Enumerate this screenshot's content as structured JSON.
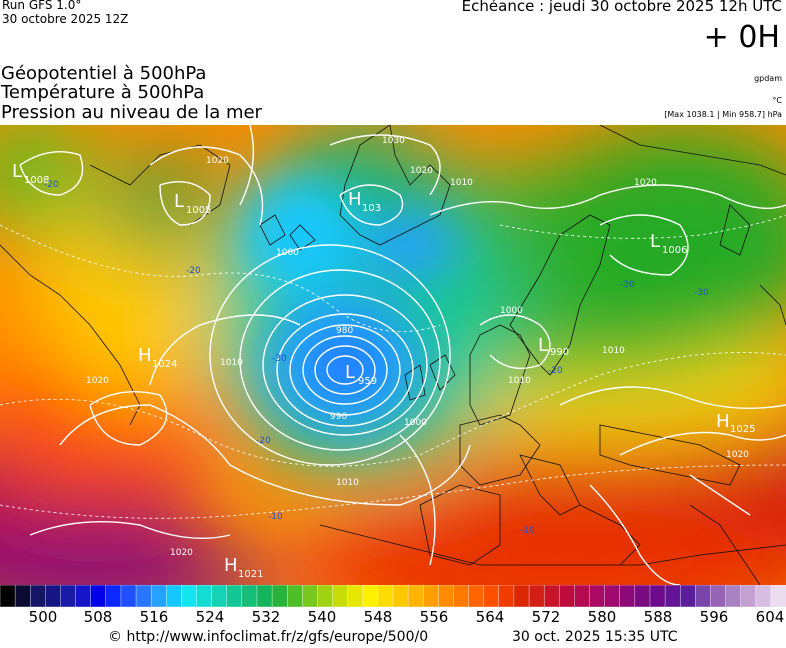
{
  "header": {
    "run_label": "Run GFS 1.0°",
    "run_date": "30 octobre 2025 12Z",
    "valid_label": "Echéance : jeudi 30 octobre 2025 12h UTC",
    "lead": "+ 0H"
  },
  "titles": [
    "Géopotentiel à 500hPa",
    "Température à 500hPa",
    "Pression au niveau de la mer"
  ],
  "units": {
    "geopotential": "gpdam",
    "temperature": "°C",
    "pressure_range": "[Max 1038.1 | Min 958.7] hPa"
  },
  "map": {
    "pressure_centers": [
      {
        "type": "L",
        "value": "1008"
      },
      {
        "type": "L",
        "value": "1005"
      },
      {
        "type": "H",
        "value": "103"
      },
      {
        "type": "L",
        "value": "1006"
      },
      {
        "type": "H",
        "value": "1024"
      },
      {
        "type": "L",
        "value": "959"
      },
      {
        "type": "L",
        "value": "990"
      },
      {
        "type": "H",
        "value": "1025"
      },
      {
        "type": "H",
        "value": "1021"
      }
    ],
    "isobar_labels": [
      "1020",
      "1010",
      "1030",
      "1020",
      "1000",
      "1000",
      "980",
      "990",
      "1000",
      "1010",
      "1010",
      "1020",
      "1020",
      "1010",
      "1020",
      "1020",
      "1010"
    ],
    "temperature_labels": [
      "-20",
      "-20",
      "-30",
      "-30",
      "-20",
      "-30",
      "-20",
      "-10",
      "-10"
    ]
  },
  "scale": {
    "tick_labels": [
      "500",
      "508",
      "516",
      "524",
      "532",
      "540",
      "548",
      "556",
      "564",
      "572",
      "580",
      "588",
      "596",
      "604"
    ],
    "colors": [
      "#000000",
      "#0a0a33",
      "#151566",
      "#151585",
      "#1a1aa8",
      "#1414c8",
      "#0000e8",
      "#0a28ff",
      "#1e50ff",
      "#2878ff",
      "#28a0ff",
      "#14c8ff",
      "#14e6f0",
      "#14dcd2",
      "#14d2b4",
      "#14c896",
      "#14be78",
      "#14b45a",
      "#28b43c",
      "#50be28",
      "#78c81e",
      "#a0d214",
      "#c8dc0a",
      "#e6e600",
      "#fff000",
      "#ffdc00",
      "#ffc800",
      "#ffb400",
      "#ffa000",
      "#ff8c00",
      "#ff7800",
      "#ff6400",
      "#ff5000",
      "#f03c00",
      "#dc2800",
      "#d21e14",
      "#c81428",
      "#be0a3c",
      "#b40a50",
      "#aa0a64",
      "#a00a6e",
      "#8c0a78",
      "#780a82",
      "#6e0a8c",
      "#641496",
      "#5a1e9b",
      "#7846aa",
      "#9664b4",
      "#aa82c3",
      "#c3a0d2",
      "#d7bee1",
      "#ebdcf0"
    ]
  },
  "footer": {
    "url": "© http://www.infoclimat.fr/z/gfs/europe/500/0",
    "timestamp": "30 oct. 2025 15:35 UTC"
  }
}
